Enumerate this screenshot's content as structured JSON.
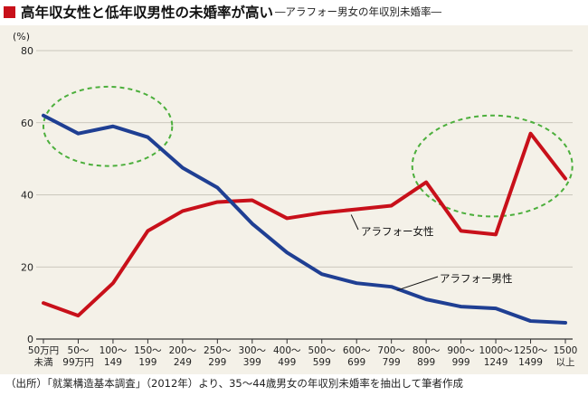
{
  "title": {
    "main": "高年収女性と低年収男性の未婚率が高い",
    "sub": "―アラフォー男女の年収別未婚率―"
  },
  "source": "（出所）「就業構造基本調査」（2012年）より、35～44歳男女の年収別未婚率を抽出して筆者作成",
  "chart_data": {
    "type": "line",
    "ylabel": "(%)",
    "ylim": [
      0,
      80
    ],
    "yticks": [
      0,
      20,
      40,
      60,
      80
    ],
    "grid": true,
    "categories": [
      [
        "50万円",
        "未満"
      ],
      [
        "50～",
        "99万円"
      ],
      [
        "100～",
        "149"
      ],
      [
        "150～",
        "199"
      ],
      [
        "200～",
        "249"
      ],
      [
        "250～",
        "299"
      ],
      [
        "300～",
        "399"
      ],
      [
        "400～",
        "499"
      ],
      [
        "500～",
        "599"
      ],
      [
        "600～",
        "699"
      ],
      [
        "700～",
        "799"
      ],
      [
        "800～",
        "899"
      ],
      [
        "900～",
        "999"
      ],
      [
        "1000～",
        "1249"
      ],
      [
        "1250～",
        "1499"
      ],
      [
        "1500",
        "以上"
      ]
    ],
    "series": [
      {
        "name": "アラフォー女性",
        "color": "#c8101a",
        "values": [
          10,
          6.5,
          15.5,
          30,
          35.5,
          38,
          38.5,
          33.5,
          35,
          36,
          37,
          43.5,
          30,
          29,
          57,
          44.5
        ]
      },
      {
        "name": "アラフォー男性",
        "color": "#1f3f93",
        "values": [
          62,
          57,
          59,
          56,
          47.5,
          42,
          32,
          24,
          18,
          15.5,
          14.5,
          11,
          9,
          8.5,
          5,
          4.5
        ]
      }
    ],
    "highlights": [
      {
        "name": "low-income-male-ellipse",
        "color": "#4caf3c",
        "x_from": 0,
        "x_to": 3.7,
        "y_from": 48,
        "y_to": 70
      },
      {
        "name": "high-income-female-ellipse",
        "color": "#4caf3c",
        "x_from": 10.6,
        "x_to": 15.2,
        "y_from": 34,
        "y_to": 62
      }
    ]
  }
}
